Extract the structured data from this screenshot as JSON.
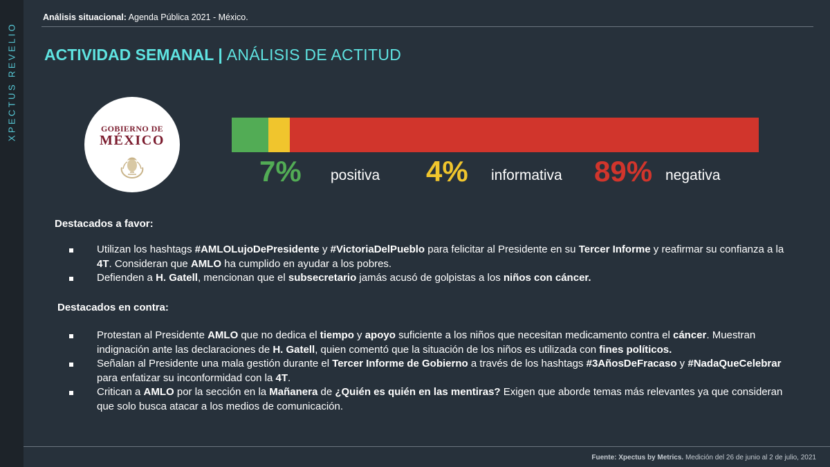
{
  "brand": {
    "vertical_text": "XPECTUS REVELIO"
  },
  "header": {
    "label": "Análisis situacional:",
    "text": " Agenda Pública 2021 - México."
  },
  "title": {
    "main": "ACTIVIDAD SEMANAL",
    "separator": "|",
    "sub": "ANÁLISIS DE ACTITUD"
  },
  "logo": {
    "line1": "GOBIERNO DE",
    "line2": "MÉXICO",
    "seal_icon": "coat-of-arms-icon"
  },
  "sentiment": {
    "positive": {
      "pct": "7%",
      "value": 7,
      "label": "positiva",
      "color": "#52ac55"
    },
    "informative": {
      "pct": "4%",
      "value": 4,
      "label": "informativa",
      "color": "#f0c52d"
    },
    "negative": {
      "pct": "89%",
      "value": 89,
      "label": "negativa",
      "color": "#d1352c"
    }
  },
  "favor": {
    "heading": "Destacados a favor:",
    "items": [
      {
        "t1": "Utilizan los hashtags ",
        "b1": "#AMLOLujoDePresidente",
        "t2": " y ",
        "b2": "#VictoriaDelPueblo",
        "t3": " para felicitar al Presidente en su ",
        "b3": "Tercer Informe",
        "t4": " y reafirmar su confianza a la ",
        "b4": "4T",
        "t5": ". Consideran que ",
        "b5": "AMLO",
        "t6": " ha cumplido en ayudar a los pobres."
      },
      {
        "t1": "Defienden a ",
        "b1": "H. Gatell",
        "t2": ", mencionan que el ",
        "b2": "subsecretario",
        "t3": " jamás acusó de golpistas a los ",
        "b3": "niños con cáncer."
      }
    ]
  },
  "contra": {
    "heading": "Destacados en contra:",
    "items": [
      {
        "t1": "Protestan al Presidente ",
        "b1": "AMLO",
        "t2": " que no dedica el ",
        "b2": "tiempo",
        "t3": " y ",
        "b3": "apoyo",
        "t4": " suficiente a los niños que necesitan medicamento contra el ",
        "b4": "cáncer",
        "t5": ". Muestran indignación ante las declaraciones de ",
        "b5": "H. Gatell",
        "t6": ", quien comentó que la situación de los niños es utilizada con ",
        "b6": "fines políticos."
      },
      {
        "t1": "Señalan al Presidente una mala gestión durante el ",
        "b1": "Tercer Informe de Gobierno",
        "t2": " a través de los hashtags ",
        "b2": "#3AñosDeFracaso",
        "t3": " y ",
        "b3": "#NadaQueCelebrar",
        "t4": " para enfatizar su inconformidad con la ",
        "b4": "4T",
        "t5": "."
      },
      {
        "t1": "Critican a ",
        "b1": "AMLO",
        "t2": " por la sección en la ",
        "b2": "Mañanera",
        "t3": " de ",
        "b3": "¿Quién es quién en las mentiras?",
        "t4": " Exigen que aborde temas más relevantes ya que consideran que solo busca atacar a los medios de comunicación."
      }
    ]
  },
  "footer": {
    "label": "Fuente: Xpectus by Metrics.",
    "text": " Medición del 26 de junio al 2 de julio, 2021"
  }
}
